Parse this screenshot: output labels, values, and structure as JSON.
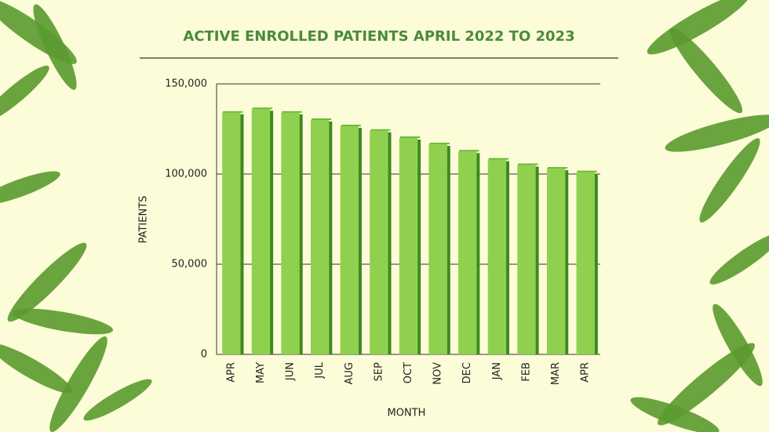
{
  "chart_data": {
    "type": "bar",
    "title": "ACTIVE ENROLLED PATIENTS APRIL 2022 TO 2023",
    "x_label": "MONTH",
    "y_label": "PATIENTS",
    "categories": [
      "APR",
      "MAY",
      "JUN",
      "JUL",
      "AUG",
      "SEP",
      "OCT",
      "NOV",
      "DEC",
      "JAN",
      "FEB",
      "MAR",
      "APR"
    ],
    "values": [
      134000,
      136000,
      134000,
      130000,
      126500,
      124000,
      120000,
      116500,
      112500,
      108000,
      105000,
      103000,
      101000
    ],
    "color": "#8fd14f",
    "ylim": [
      0,
      150000
    ],
    "yticks": [
      0,
      {
        "value": 50000,
        "label": "50,000"
      },
      {
        "value": 100000,
        "label": "100,000"
      },
      {
        "value": 150000,
        "label": "150,000"
      }
    ],
    "grid": true
  }
}
